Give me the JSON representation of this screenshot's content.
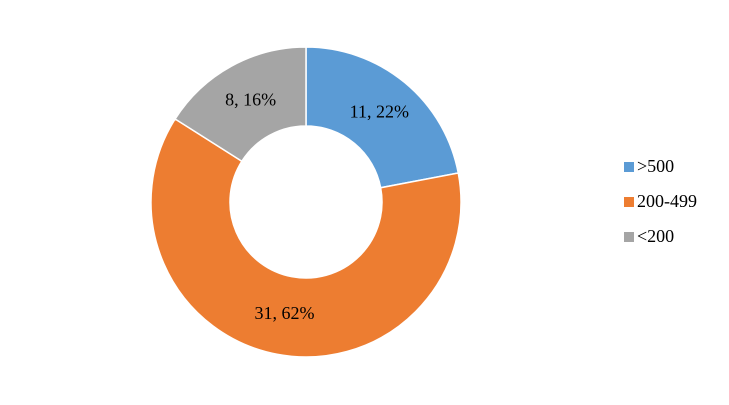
{
  "chart_data": {
    "type": "pie",
    "categories": [
      ">500",
      "200-499",
      "<200"
    ],
    "values": [
      11,
      31,
      8
    ],
    "value_labels": [
      "11, 22%",
      "31, 62%",
      "8, 16%"
    ],
    "colors": [
      "#5b9bd5",
      "#ed7d31",
      "#a5a5a5"
    ],
    "legend": "right"
  }
}
